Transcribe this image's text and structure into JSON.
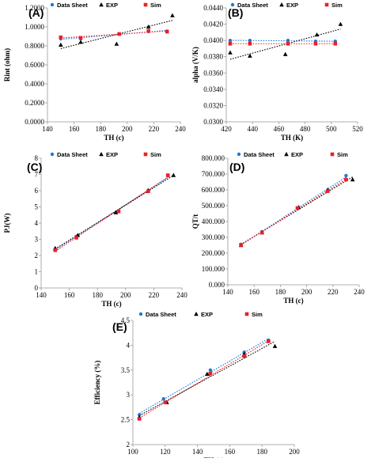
{
  "colors": {
    "data_sheet": "#1f77d4",
    "exp": "#000000",
    "sim": "#e8202a"
  },
  "chart_data": [
    {
      "panel": "(A)",
      "type": "scatter",
      "title": "",
      "xlabel": "TH (c)",
      "ylabel": "Rint (ohm)",
      "xlim": [
        140,
        240
      ],
      "ylim": [
        0,
        1.2
      ],
      "xticks": [
        "140",
        "160",
        "180",
        "200",
        "220",
        "240"
      ],
      "yticks": [
        "0.0000",
        "0.2000",
        "0.4000",
        "0.6000",
        "0.8000",
        "1.0000",
        "1.2000"
      ],
      "legend": {
        "placement": "top",
        "entries": [
          "Data Sheet",
          "EXP",
          "Sim"
        ]
      },
      "series": [
        {
          "name": "Data Sheet",
          "marker": "circle",
          "x": [
            150,
            165,
            194,
            216,
            230
          ],
          "y": [
            0.875,
            0.875,
            0.925,
            0.955,
            0.955
          ]
        },
        {
          "name": "EXP",
          "marker": "triangle",
          "x": [
            150,
            165,
            192,
            216,
            234
          ],
          "y": [
            0.81,
            0.84,
            0.82,
            1.0,
            1.12
          ]
        },
        {
          "name": "Sim",
          "marker": "square",
          "x": [
            150,
            165,
            194,
            216,
            230
          ],
          "y": [
            0.89,
            0.885,
            0.925,
            0.955,
            0.95
          ]
        }
      ]
    },
    {
      "panel": "(B)",
      "type": "scatter",
      "title": "",
      "xlabel": "TH (K)",
      "ylabel": "alpha (V/K)",
      "xlim": [
        420,
        520
      ],
      "ylim": [
        0.03,
        0.044
      ],
      "xticks": [
        "420",
        "440",
        "460",
        "480",
        "500",
        "520"
      ],
      "yticks": [
        "0.0300",
        "0.0320",
        "0.0340",
        "0.0360",
        "0.0380",
        "0.0400",
        "0.0420",
        "0.0440"
      ],
      "legend": {
        "placement": "top",
        "entries": [
          "Data Sheet",
          "EXP",
          "Sim"
        ]
      },
      "series": [
        {
          "name": "Data Sheet",
          "marker": "circle",
          "x": [
            423,
            438,
            467,
            488,
            503
          ],
          "y": [
            0.04,
            0.04,
            0.04,
            0.0399,
            0.0399
          ]
        },
        {
          "name": "EXP",
          "marker": "triangle",
          "x": [
            423,
            438,
            465,
            489,
            507
          ],
          "y": [
            0.0385,
            0.0381,
            0.0383,
            0.0407,
            0.042
          ]
        },
        {
          "name": "Sim",
          "marker": "square",
          "x": [
            423,
            438,
            467,
            488,
            503
          ],
          "y": [
            0.0396,
            0.0396,
            0.0396,
            0.0396,
            0.0396
          ]
        }
      ]
    },
    {
      "panel": "(C)",
      "type": "scatter",
      "title": "",
      "xlabel": "TH (c)",
      "ylabel": "PJ(W)",
      "xlim": [
        140,
        240
      ],
      "ylim": [
        0,
        8
      ],
      "xticks": [
        "140",
        "160",
        "180",
        "200",
        "220",
        "240"
      ],
      "yticks": [
        "0",
        "1",
        "2",
        "3",
        "4",
        "5",
        "6",
        "7",
        "8"
      ],
      "legend": {
        "placement": "top",
        "entries": [
          "Data Sheet",
          "EXP",
          "Sim"
        ]
      },
      "series": [
        {
          "name": "Data Sheet",
          "marker": "circle",
          "x": [
            150,
            165,
            194,
            216,
            230
          ],
          "y": [
            2.4,
            3.18,
            4.7,
            5.98,
            6.92
          ]
        },
        {
          "name": "EXP",
          "marker": "triangle",
          "x": [
            150,
            166,
            193,
            216,
            234
          ],
          "y": [
            2.45,
            3.25,
            4.65,
            6.02,
            6.95
          ]
        },
        {
          "name": "Sim",
          "marker": "square",
          "x": [
            150,
            165,
            195,
            216,
            230
          ],
          "y": [
            2.33,
            3.1,
            4.72,
            5.96,
            6.95
          ]
        }
      ]
    },
    {
      "panel": "(D)",
      "type": "scatter",
      "title": "",
      "xlabel": "TH (c)",
      "ylabel": "QT/t",
      "xlim": [
        140,
        240
      ],
      "ylim": [
        0,
        800000
      ],
      "xticks": [
        "140",
        "160",
        "180",
        "200",
        "220",
        "240"
      ],
      "yticks": [
        "0.000",
        "100.000",
        "200.000",
        "300.000",
        "400.000",
        "500.000",
        "600.000",
        "700.000",
        "800.000"
      ],
      "legend": {
        "placement": "top",
        "entries": [
          "Data Sheet",
          "EXP",
          "Sim"
        ]
      },
      "series": [
        {
          "name": "Data Sheet",
          "marker": "circle",
          "x": [
            150,
            166,
            193,
            216,
            230
          ],
          "y": [
            255000,
            335000,
            485000,
            595000,
            690000
          ]
        },
        {
          "name": "EXP",
          "marker": "triangle",
          "x": [
            150,
            166,
            194,
            216,
            235
          ],
          "y": [
            250000,
            330000,
            490000,
            600000,
            665000
          ]
        },
        {
          "name": "Sim",
          "marker": "square",
          "x": [
            150,
            166,
            193,
            216,
            230
          ],
          "y": [
            252000,
            330000,
            485000,
            592000,
            665000
          ]
        }
      ]
    },
    {
      "panel": "(E)",
      "type": "scatter",
      "title": "",
      "xlabel": "TH (c)",
      "ylabel": "Efficiency (%)",
      "xlim": [
        100,
        200
      ],
      "ylim": [
        2,
        4.5
      ],
      "xticks": [
        "100",
        "120",
        "140",
        "160",
        "180",
        "200"
      ],
      "yticks": [
        "2",
        "2.5",
        "3",
        "3.5",
        "4",
        "4.5"
      ],
      "legend": {
        "placement": "top",
        "entries": [
          "Data Sheet",
          "EXP",
          "Sim"
        ]
      },
      "series": [
        {
          "name": "Data Sheet",
          "marker": "circle",
          "x": [
            104,
            119,
            148,
            169,
            184
          ],
          "y": [
            2.6,
            2.92,
            3.5,
            3.86,
            4.1
          ]
        },
        {
          "name": "EXP",
          "marker": "triangle",
          "x": [
            104,
            121,
            146,
            169,
            188
          ],
          "y": [
            2.55,
            2.85,
            3.42,
            3.82,
            3.98
          ]
        },
        {
          "name": "Sim",
          "marker": "square",
          "x": [
            104,
            120,
            148,
            169,
            184
          ],
          "y": [
            2.52,
            2.85,
            3.43,
            3.78,
            4.08
          ]
        }
      ]
    }
  ]
}
